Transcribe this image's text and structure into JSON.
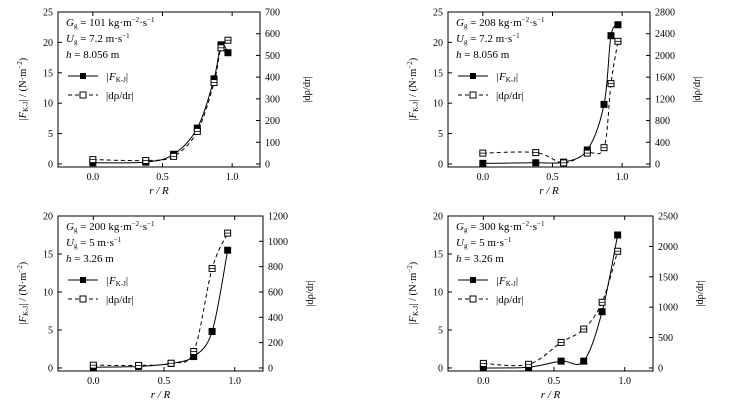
{
  "chart_data": [
    {
      "type": "line",
      "panel": "top-left",
      "annotation": {
        "g_label": "G",
        "g_sub": "g",
        "g_value": " = 101 kg·m",
        "g_exp1": "−2",
        "g_mid": "·s",
        "g_exp2": "−1",
        "u_label": "U",
        "u_sub": "g",
        "u_value": " = 7.2 m·s",
        "u_exp": "−1",
        "h_text": "h",
        "h_value": " = 8.056 m"
      },
      "xlabel": "r / R",
      "ylabel_left": "|F_K-J| / (N·m^-2)",
      "ylabel_right": "|dρ/dr|",
      "xlim": [
        -0.25,
        1.2
      ],
      "xticks": [
        "0.0",
        "0.5",
        "1.0"
      ],
      "xtick_values": [
        0,
        0.5,
        1.0
      ],
      "ylim_left": [
        -0.5,
        25
      ],
      "yticks_left": [
        0,
        5,
        10,
        15,
        20,
        25
      ],
      "ylim_right": [
        -14,
        700
      ],
      "yticks_right": [
        0,
        100,
        200,
        300,
        400,
        500,
        600,
        700
      ],
      "legend": [
        "|F_K-J|",
        "|dρ/dr|"
      ],
      "series": [
        {
          "name": "|F_K-J|",
          "axis": "left",
          "style": "solid",
          "marker": "filled-square",
          "x": [
            0.0,
            0.38,
            0.58,
            0.75,
            0.87,
            0.92,
            0.97
          ],
          "y": [
            0.2,
            0.3,
            1.6,
            5.9,
            14.0,
            19.6,
            18.3
          ]
        },
        {
          "name": "|dρ/dr|",
          "axis": "right",
          "style": "dashed",
          "marker": "open-square",
          "x": [
            0.0,
            0.38,
            0.58,
            0.75,
            0.87,
            0.92,
            0.97
          ],
          "y": [
            20,
            16,
            35,
            150,
            375,
            535,
            570
          ]
        }
      ]
    },
    {
      "type": "line",
      "panel": "top-right",
      "annotation": {
        "g_label": "G",
        "g_sub": "g",
        "g_value": " = 208 kg·m",
        "g_exp1": "−2",
        "g_mid": "·s",
        "g_exp2": "−1",
        "u_label": "U",
        "u_sub": "g",
        "u_value": " = 7.2 m·s",
        "u_exp": "−1",
        "h_text": "h",
        "h_value": " = 8.056 m"
      },
      "xlabel": "r / R",
      "ylabel_left": "|F_K-J| / (N·m^-2)",
      "ylabel_right": "|dρ/dr|",
      "xlim": [
        -0.25,
        1.2
      ],
      "xticks": [
        "0.0",
        "0.5",
        "1.0"
      ],
      "xtick_values": [
        0,
        0.5,
        1.0
      ],
      "ylim_left": [
        -0.5,
        25
      ],
      "yticks_left": [
        0,
        5,
        10,
        15,
        20,
        25
      ],
      "ylim_right": [
        -56,
        2800
      ],
      "yticks_right": [
        0,
        400,
        800,
        1200,
        1600,
        2000,
        2400,
        2800
      ],
      "legend": [
        "|F_K-J|",
        "|dρ/dr|"
      ],
      "series": [
        {
          "name": "|F_K-J|",
          "axis": "left",
          "style": "solid",
          "marker": "filled-square",
          "x": [
            0.0,
            0.38,
            0.58,
            0.75,
            0.87,
            0.92,
            0.97
          ],
          "y": [
            0.1,
            0.2,
            0.3,
            2.3,
            9.8,
            21.1,
            22.9
          ]
        },
        {
          "name": "|dρ/dr|",
          "axis": "right",
          "style": "dashed",
          "marker": "open-square",
          "x": [
            0.0,
            0.38,
            0.58,
            0.75,
            0.87,
            0.92,
            0.97
          ],
          "y": [
            200,
            210,
            20,
            200,
            300,
            1480,
            2260
          ]
        }
      ]
    },
    {
      "type": "line",
      "panel": "bottom-left",
      "annotation": {
        "g_label": "G",
        "g_sub": "g",
        "g_value": " = 200 kg·m",
        "g_exp1": "−2",
        "g_mid": "·s",
        "g_exp2": "−1",
        "u_label": "U",
        "u_sub": "g",
        "u_value": " = 5 m·s",
        "u_exp": "−1",
        "h_text": "h",
        "h_value": " = 3.26 m"
      },
      "xlabel": "r / R",
      "ylabel_left": "|F_K-J| / (N·m^-2)",
      "ylabel_right": "|dρ/dr|",
      "xlim": [
        -0.25,
        1.2
      ],
      "xticks": [
        "0.0",
        "0.5",
        "1.0"
      ],
      "xtick_values": [
        0,
        0.5,
        1.0
      ],
      "ylim_left": [
        -0.4,
        20
      ],
      "yticks_left": [
        0,
        5,
        10,
        15,
        20
      ],
      "ylim_right": [
        -24,
        1200
      ],
      "yticks_right": [
        0,
        200,
        400,
        600,
        800,
        1000,
        1200
      ],
      "legend": [
        "|F_K-J|",
        "|dρ/dr|"
      ],
      "series": [
        {
          "name": "|F_K-J|",
          "axis": "left",
          "style": "solid",
          "marker": "filled-square",
          "x": [
            0.0,
            0.32,
            0.55,
            0.71,
            0.84,
            0.95
          ],
          "y": [
            0.1,
            0.2,
            0.6,
            1.5,
            4.8,
            15.5
          ]
        },
        {
          "name": "|dρ/dr|",
          "axis": "right",
          "style": "dashed",
          "marker": "open-square",
          "x": [
            0.0,
            0.32,
            0.55,
            0.71,
            0.84,
            0.95
          ],
          "y": [
            22,
            20,
            37,
            130,
            785,
            1065
          ]
        }
      ]
    },
    {
      "type": "line",
      "panel": "bottom-right",
      "annotation": {
        "g_label": "G",
        "g_sub": "g",
        "g_value": " = 300 kg·m",
        "g_exp1": "−2",
        "g_mid": "·s",
        "g_exp2": "−1",
        "u_label": "U",
        "u_sub": "g",
        "u_value": " = 5 m·s",
        "u_exp": "−1",
        "h_text": "h",
        "h_value": " = 3.26 m"
      },
      "xlabel": "r / R",
      "ylabel_left": "|F_K-J| / (N·m^-2)",
      "ylabel_right": "|dρ/dr|",
      "xlim": [
        -0.25,
        1.2
      ],
      "xticks": [
        "0.0",
        "0.5",
        "1.0"
      ],
      "xtick_values": [
        0,
        0.5,
        1.0
      ],
      "ylim_left": [
        -0.4,
        20
      ],
      "yticks_left": [
        0,
        5,
        10,
        15,
        20
      ],
      "ylim_right": [
        -50,
        2500
      ],
      "yticks_right": [
        0,
        500,
        1000,
        1500,
        2000,
        2500
      ],
      "legend": [
        "|F_K-J|",
        "|dρ/dr|"
      ],
      "series": [
        {
          "name": "|F_K-J|",
          "axis": "left",
          "style": "solid",
          "marker": "filled-square",
          "x": [
            0.0,
            0.32,
            0.55,
            0.71,
            0.84,
            0.95
          ],
          "y": [
            0.0,
            0.1,
            0.9,
            0.9,
            7.4,
            17.5
          ]
        },
        {
          "name": "|dρ/dr|",
          "axis": "right",
          "style": "dashed",
          "marker": "open-square",
          "x": [
            0.0,
            0.32,
            0.55,
            0.71,
            0.84,
            0.95
          ],
          "y": [
            75,
            60,
            420,
            640,
            1080,
            1920
          ]
        }
      ]
    }
  ],
  "legend_parts": {
    "f_label_pre": "|F",
    "f_label_sub": "K-J",
    "f_label_post": "|",
    "d_label": "|dρ/dr|"
  },
  "axis_parts": {
    "x_label": "r / R",
    "yl_pre": "|F",
    "yl_sub": "K-J",
    "yl_post": "| / (N·m",
    "yl_exp": "−2",
    "yl_close": ")",
    "yr_label": "|dρ/dr|"
  }
}
